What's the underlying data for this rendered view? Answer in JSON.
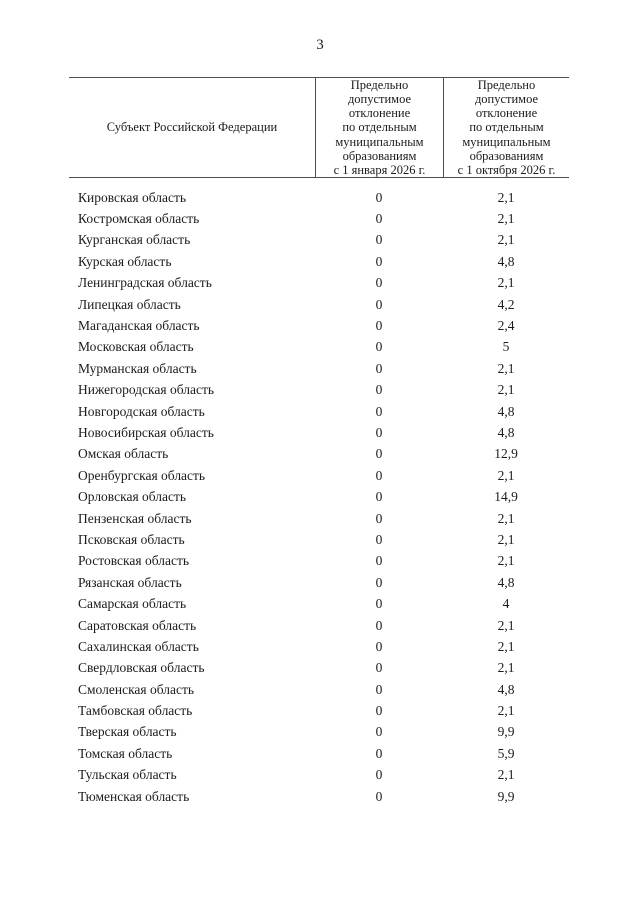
{
  "page": {
    "number": "3"
  },
  "table": {
    "header": {
      "region": "Субъект Российской Федерации",
      "jan": "Предельно\nдопустимое\nотклонение\nпо отдельным\nмуниципальным\nобразованиям\nс 1 января 2026 г.",
      "oct": "Предельно\nдопустимое\nотклонение\nпо отдельным\nмуниципальным\nобразованиям\nс 1 октября 2026 г."
    },
    "rows": [
      {
        "region": "Кировская область",
        "jan": "0",
        "oct": "2,1"
      },
      {
        "region": "Костромская область",
        "jan": "0",
        "oct": "2,1"
      },
      {
        "region": "Курганская область",
        "jan": "0",
        "oct": "2,1"
      },
      {
        "region": "Курская область",
        "jan": "0",
        "oct": "4,8"
      },
      {
        "region": "Ленинградская область",
        "jan": "0",
        "oct": "2,1"
      },
      {
        "region": "Липецкая область",
        "jan": "0",
        "oct": "4,2"
      },
      {
        "region": "Магаданская область",
        "jan": "0",
        "oct": "2,4"
      },
      {
        "region": "Московская область",
        "jan": "0",
        "oct": "5"
      },
      {
        "region": "Мурманская область",
        "jan": "0",
        "oct": "2,1"
      },
      {
        "region": "Нижегородская область",
        "jan": "0",
        "oct": "2,1"
      },
      {
        "region": "Новгородская область",
        "jan": "0",
        "oct": "4,8"
      },
      {
        "region": "Новосибирская область",
        "jan": "0",
        "oct": "4,8"
      },
      {
        "region": "Омская область",
        "jan": "0",
        "oct": "12,9"
      },
      {
        "region": "Оренбургская область",
        "jan": "0",
        "oct": "2,1"
      },
      {
        "region": "Орловская область",
        "jan": "0",
        "oct": "14,9"
      },
      {
        "region": "Пензенская область",
        "jan": "0",
        "oct": "2,1"
      },
      {
        "region": "Псковская область",
        "jan": "0",
        "oct": "2,1"
      },
      {
        "region": "Ростовская область",
        "jan": "0",
        "oct": "2,1"
      },
      {
        "region": "Рязанская область",
        "jan": "0",
        "oct": "4,8"
      },
      {
        "region": "Самарская область",
        "jan": "0",
        "oct": "4"
      },
      {
        "region": "Саратовская область",
        "jan": "0",
        "oct": "2,1"
      },
      {
        "region": "Сахалинская область",
        "jan": "0",
        "oct": "2,1"
      },
      {
        "region": "Свердловская область",
        "jan": "0",
        "oct": "2,1"
      },
      {
        "region": "Смоленская область",
        "jan": "0",
        "oct": "4,8"
      },
      {
        "region": "Тамбовская область",
        "jan": "0",
        "oct": "2,1"
      },
      {
        "region": "Тверская область",
        "jan": "0",
        "oct": "9,9"
      },
      {
        "region": "Томская область",
        "jan": "0",
        "oct": "5,9"
      },
      {
        "region": "Тульская область",
        "jan": "0",
        "oct": "2,1"
      },
      {
        "region": "Тюменская область",
        "jan": "0",
        "oct": "9,9"
      }
    ]
  }
}
